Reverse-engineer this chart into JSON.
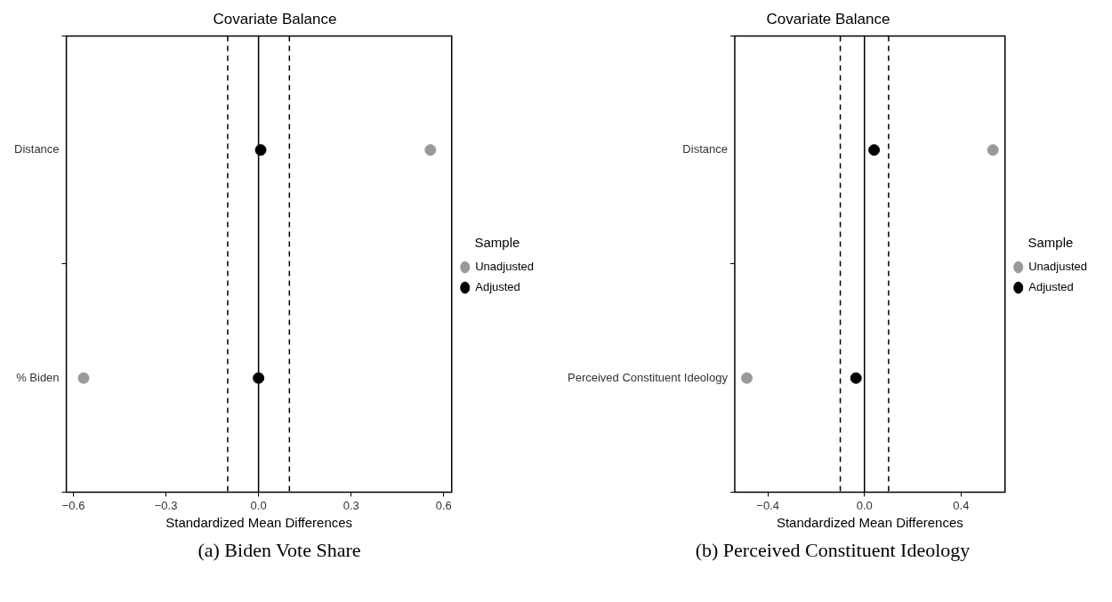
{
  "chart_data": [
    {
      "type": "scatter",
      "title": "Covariate Balance",
      "xlabel": "Standardized Mean Differences",
      "legend_title": "Sample",
      "orientation": "horizontal",
      "categories": [
        "Distance",
        "% Biden"
      ],
      "series": [
        {
          "name": "Unadjusted",
          "color": "#999999",
          "values": [
            0.557,
            -0.567
          ]
        },
        {
          "name": "Adjusted",
          "color": "#000000",
          "values": [
            0.007,
            0.0
          ]
        }
      ],
      "xlim": [
        -0.623,
        0.626
      ],
      "xticks": [
        {
          "value": -0.6,
          "label": "−0.6"
        },
        {
          "value": -0.3,
          "label": "−0.3"
        },
        {
          "value": 0,
          "label": "0.0"
        },
        {
          "value": 0.3,
          "label": "0.3"
        },
        {
          "value": 0.6,
          "label": "0.6"
        }
      ],
      "ref_lines": [
        {
          "axis": "x",
          "value": 0,
          "color": "#000000",
          "line_style": "solid"
        },
        {
          "axis": "x",
          "value": -0.1,
          "color": "#000000",
          "line_style": "dashed"
        },
        {
          "axis": "x",
          "value": 0.1,
          "color": "#000000",
          "line_style": "dashed"
        }
      ],
      "grid": false,
      "legend": "right",
      "marker": "circle",
      "annotations": [
        "(a) Biden Vote Share"
      ]
    },
    {
      "type": "scatter",
      "title": "Covariate Balance",
      "xlabel": "Standardized Mean Differences",
      "legend_title": "Sample",
      "orientation": "horizontal",
      "categories": [
        "Distance",
        "Perceived Constituent Ideology"
      ],
      "series": [
        {
          "name": "Unadjusted",
          "color": "#999999",
          "values": [
            0.532,
            -0.487
          ]
        },
        {
          "name": "Adjusted",
          "color": "#000000",
          "values": [
            0.04,
            -0.035
          ]
        }
      ],
      "xlim": [
        -0.537,
        0.582
      ],
      "xticks": [
        {
          "value": -0.4,
          "label": "−0.4"
        },
        {
          "value": 0,
          "label": "0.0"
        },
        {
          "value": 0.4,
          "label": "0.4"
        }
      ],
      "ref_lines": [
        {
          "axis": "x",
          "value": 0,
          "color": "#000000",
          "line_style": "solid"
        },
        {
          "axis": "x",
          "value": -0.1,
          "color": "#000000",
          "line_style": "dashed"
        },
        {
          "axis": "x",
          "value": 0.1,
          "color": "#000000",
          "line_style": "dashed"
        }
      ],
      "grid": false,
      "legend": "right",
      "marker": "circle",
      "annotations": [
        "(b) Perceived Constituent Ideology"
      ]
    }
  ]
}
